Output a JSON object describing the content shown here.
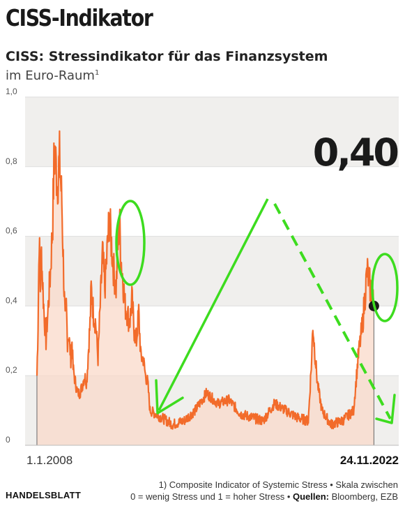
{
  "header": {
    "title": "CISS-Indikator",
    "subtitle": "CISS: Stressindikator für das Finanzsystem",
    "subtitle2": "im Euro-Raum",
    "subtitle2_sup": "1"
  },
  "footer": {
    "logo": "HANDELSBLATT",
    "note_line1": "1) Composite Indicator of Systemic Stress • Skala zwischen",
    "note_line2_pre": "0 = wenig Stress und 1 = hoher Stress • ",
    "note_sources_label": "Quellen:",
    "note_sources": " Bloomberg, EZB"
  },
  "colors": {
    "line": "#f26b2a",
    "fill": "#f9d9c9",
    "band": "#f0efed",
    "marker": "#1a1a1a",
    "annotation": "#3ddc1f"
  },
  "chart_data": {
    "type": "area",
    "x_start_label": "1.1.2008",
    "x_end_label": "24.11.2022",
    "y_ticks": [
      "0",
      "0,2",
      "0,4",
      "0,6",
      "0,8",
      "1,0"
    ],
    "ylim": [
      0,
      1
    ],
    "current_value_label": "0,40",
    "current_value": 0.4,
    "series": [
      {
        "x": [
          2008.0,
          2008.05,
          2008.1,
          2008.15,
          2008.2,
          2008.3,
          2008.4,
          2008.5,
          2008.6,
          2008.7,
          2008.75,
          2008.8,
          2008.9,
          2009.0,
          2009.1,
          2009.2,
          2009.25,
          2009.3,
          2009.35,
          2009.4,
          2009.5,
          2009.55,
          2009.6,
          2009.7,
          2009.8,
          2009.9,
          2010.0,
          2010.1,
          2010.2,
          2010.3,
          2010.35,
          2010.4,
          2010.5,
          2010.6,
          2010.7,
          2010.8,
          2010.9,
          2011.0,
          2011.2,
          2011.4,
          2011.5,
          2011.6,
          2011.65,
          2011.7,
          2011.8,
          2011.9,
          2012.0,
          2012.1,
          2012.2,
          2012.3,
          2012.4,
          2012.5,
          2012.6,
          2012.7,
          2012.8,
          2012.9,
          2013.0,
          2013.5,
          2014.0,
          2014.5,
          2015.0,
          2015.5,
          2016.0,
          2016.5,
          2017.0,
          2017.5,
          2018.0,
          2018.5,
          2019.0,
          2019.5,
          2020.0,
          2020.15,
          2020.2,
          2020.25,
          2020.4,
          2020.6,
          2020.8,
          2021.0,
          2021.5,
          2022.0,
          2022.2,
          2022.4,
          2022.6,
          2022.75,
          2022.9
        ],
        "values": [
          0.2,
          0.35,
          0.6,
          0.45,
          0.55,
          0.4,
          0.3,
          0.4,
          0.5,
          0.65,
          0.8,
          0.84,
          0.75,
          0.82,
          0.7,
          0.45,
          0.35,
          0.4,
          0.3,
          0.32,
          0.25,
          0.3,
          0.22,
          0.18,
          0.15,
          0.15,
          0.17,
          0.2,
          0.18,
          0.3,
          0.35,
          0.45,
          0.38,
          0.35,
          0.25,
          0.4,
          0.55,
          0.45,
          0.65,
          0.5,
          0.45,
          0.6,
          0.66,
          0.55,
          0.48,
          0.4,
          0.38,
          0.35,
          0.42,
          0.33,
          0.3,
          0.38,
          0.25,
          0.25,
          0.2,
          0.18,
          0.1,
          0.08,
          0.06,
          0.07,
          0.1,
          0.15,
          0.12,
          0.13,
          0.09,
          0.08,
          0.07,
          0.12,
          0.1,
          0.08,
          0.07,
          0.25,
          0.35,
          0.3,
          0.18,
          0.1,
          0.08,
          0.06,
          0.07,
          0.1,
          0.25,
          0.35,
          0.5,
          0.45,
          0.4
        ]
      }
    ],
    "grid": true
  }
}
